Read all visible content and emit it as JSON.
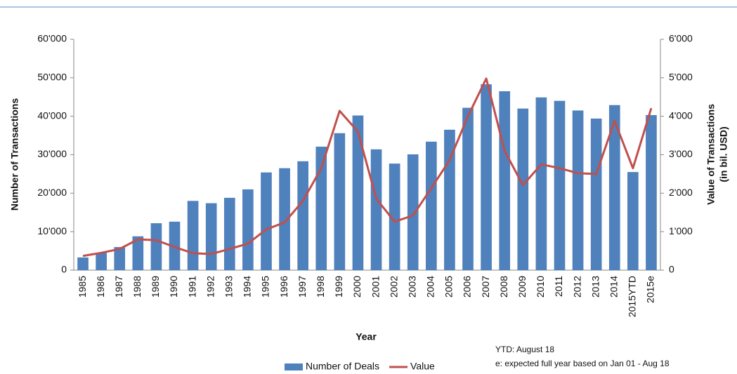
{
  "chart_data": {
    "type": "bar-line",
    "categories": [
      "1985",
      "1986",
      "1987",
      "1988",
      "1989",
      "1990",
      "1991",
      "1992",
      "1993",
      "1994",
      "1995",
      "1996",
      "1997",
      "1998",
      "1999",
      "2000",
      "2001",
      "2002",
      "2003",
      "2004",
      "2005",
      "2006",
      "2007",
      "2008",
      "2009",
      "2010",
      "2011",
      "2012",
      "2013",
      "2014",
      "2015YTD",
      "2015e"
    ],
    "series": [
      {
        "name": "Number of Deals",
        "type": "bar",
        "color": "#4f81bd",
        "values": [
          3300,
          4500,
          6000,
          8800,
          12200,
          12600,
          18000,
          17400,
          18800,
          21000,
          25400,
          26500,
          28300,
          32100,
          35600,
          40200,
          31400,
          27700,
          30100,
          33400,
          36500,
          42200,
          48300,
          46500,
          42000,
          44900,
          44000,
          41500,
          39400,
          42900,
          25500,
          40300
        ]
      },
      {
        "name": "Value",
        "type": "line",
        "axis": "y2",
        "color": "#c0504d",
        "values": [
          370,
          450,
          550,
          800,
          780,
          600,
          440,
          420,
          550,
          690,
          1060,
          1240,
          1800,
          2650,
          4140,
          3600,
          1860,
          1260,
          1420,
          2130,
          2860,
          4000,
          4980,
          3100,
          2210,
          2750,
          2650,
          2520,
          2500,
          3880,
          2650,
          4210
        ]
      }
    ],
    "xlabel": "Year",
    "ylabel": "Number of Transactions",
    "y2label": [
      "Value of Transactions",
      "(in bil. USD)"
    ],
    "ylim": [
      0,
      60000
    ],
    "yticks": [
      0,
      {
        "value": 10000,
        "label": "10'000"
      },
      {
        "value": 20000,
        "label": "20'000"
      },
      {
        "value": 30000,
        "label": "30'000"
      },
      {
        "value": 40000,
        "label": "40'000"
      },
      {
        "value": 50000,
        "label": "50'000"
      },
      {
        "value": 60000,
        "label": "60'000"
      }
    ],
    "y2lim": [
      0,
      6000
    ],
    "y2ticks": [
      0,
      {
        "value": 1000,
        "label": "1'000"
      },
      {
        "value": 2000,
        "label": "2'000"
      },
      {
        "value": 3000,
        "label": "3'000"
      },
      {
        "value": 4000,
        "label": "4'000"
      },
      {
        "value": 5000,
        "label": "5'000"
      },
      {
        "value": 6000,
        "label": "6'000"
      }
    ],
    "notes": [
      "YTD: August 18",
      "e: expected full year based on Jan 01 - Aug 18"
    ],
    "legend": "bottom",
    "grid": false
  }
}
